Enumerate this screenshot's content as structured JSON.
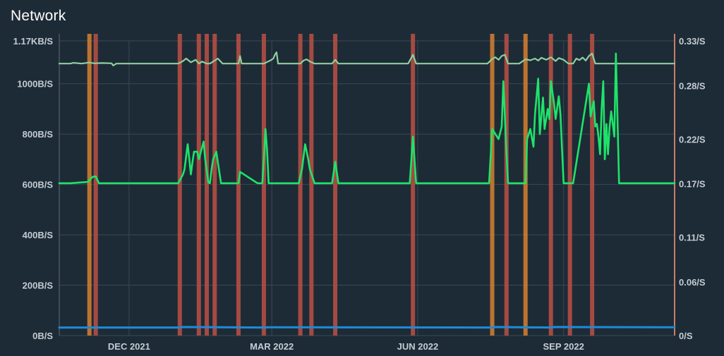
{
  "title": "Network",
  "chart_data": {
    "type": "line",
    "title": "Network",
    "y_left": {
      "ticks": [
        0,
        200,
        400,
        600,
        800,
        1000,
        1170
      ],
      "tick_labels": [
        "0B/S",
        "200B/S",
        "400B/S",
        "600B/S",
        "800B/S",
        "1000B/S",
        "1.17KB/S"
      ],
      "range": [
        0,
        1170
      ]
    },
    "y_right": {
      "ticks": [
        0,
        0.06,
        0.11,
        0.17,
        0.22,
        0.28,
        0.33
      ],
      "tick_labels": [
        "0/S",
        "0.06/S",
        "0.11/S",
        "0.17/S",
        "0.22/S",
        "0.28/S",
        "0.33/S"
      ],
      "range": [
        0,
        0.33
      ]
    },
    "x_axis": {
      "range": [
        "2021-10-18",
        "2022-11-10"
      ],
      "ticks": [
        "2021-12-01",
        "2022-03-01",
        "2022-06-01",
        "2022-09-01"
      ],
      "tick_labels": [
        "DEC 2021",
        "MAR 2022",
        "JUN 2022",
        "SEP 2022"
      ]
    },
    "colors": {
      "background": "#1d2b36",
      "grid": "#3a4855",
      "axis_left": "#4a5663",
      "axis_right": "#c97d6c",
      "band_red": "#b84e44",
      "band_orange": "#d37d30"
    },
    "bands": [
      {
        "date": "2021-11-06",
        "color": "orange"
      },
      {
        "date": "2021-11-10",
        "color": "red"
      },
      {
        "date": "2022-01-02",
        "color": "red"
      },
      {
        "date": "2022-01-14",
        "color": "red"
      },
      {
        "date": "2022-01-19",
        "color": "red"
      },
      {
        "date": "2022-01-24",
        "color": "red"
      },
      {
        "date": "2022-02-08",
        "color": "red"
      },
      {
        "date": "2022-02-24",
        "color": "red"
      },
      {
        "date": "2022-03-19",
        "color": "red"
      },
      {
        "date": "2022-03-26",
        "color": "red"
      },
      {
        "date": "2022-04-10",
        "color": "red"
      },
      {
        "date": "2022-05-29",
        "color": "red"
      },
      {
        "date": "2022-07-18",
        "color": "orange"
      },
      {
        "date": "2022-07-27",
        "color": "red"
      },
      {
        "date": "2022-08-08",
        "color": "orange"
      },
      {
        "date": "2022-08-24",
        "color": "red"
      },
      {
        "date": "2022-09-05",
        "color": "red"
      },
      {
        "date": "2022-09-19",
        "color": "red"
      }
    ],
    "series": [
      {
        "axis": "left",
        "color": "#8fcf9e",
        "width": 2.2,
        "x": [
          "2021-10-18",
          "2021-10-25",
          "2021-10-27",
          "2021-11-01",
          "2021-11-06",
          "2021-11-09",
          "2021-11-14",
          "2021-11-20",
          "2021-11-21",
          "2021-11-23",
          "2021-12-10",
          "2022-01-01",
          "2022-01-04",
          "2022-01-06",
          "2022-01-09",
          "2022-01-12",
          "2022-01-14",
          "2022-01-16",
          "2022-01-19",
          "2022-01-21",
          "2022-01-24",
          "2022-01-26",
          "2022-01-29",
          "2022-02-08",
          "2022-02-09",
          "2022-02-10",
          "2022-02-24",
          "2022-02-28",
          "2022-03-02",
          "2022-03-03",
          "2022-03-04",
          "2022-03-05",
          "2022-03-12",
          "2022-03-19",
          "2022-03-21",
          "2022-03-23",
          "2022-03-25",
          "2022-03-28",
          "2022-04-08",
          "2022-04-10",
          "2022-04-12",
          "2022-05-26",
          "2022-05-29",
          "2022-05-31",
          "2022-07-15",
          "2022-07-18",
          "2022-07-20",
          "2022-07-22",
          "2022-07-24",
          "2022-07-26",
          "2022-07-28",
          "2022-08-04",
          "2022-08-08",
          "2022-08-11",
          "2022-08-14",
          "2022-08-16",
          "2022-08-18",
          "2022-08-21",
          "2022-08-24",
          "2022-08-27",
          "2022-08-29",
          "2022-09-01",
          "2022-09-04",
          "2022-09-07",
          "2022-09-09",
          "2022-09-11",
          "2022-09-13",
          "2022-09-15",
          "2022-09-17",
          "2022-09-19",
          "2022-09-21",
          "2022-09-24",
          "2022-10-20",
          "2022-11-10"
        ],
        "y": [
          1080,
          1080,
          1083,
          1080,
          1084,
          1081,
          1082,
          1081,
          1072,
          1080,
          1080,
          1080,
          1090,
          1100,
          1085,
          1095,
          1080,
          1088,
          1080,
          1080,
          1092,
          1100,
          1080,
          1080,
          1110,
          1080,
          1080,
          1092,
          1100,
          1115,
          1125,
          1080,
          1080,
          1080,
          1092,
          1097,
          1088,
          1080,
          1080,
          1095,
          1080,
          1080,
          1115,
          1080,
          1080,
          1098,
          1105,
          1095,
          1110,
          1115,
          1080,
          1080,
          1097,
          1093,
          1100,
          1092,
          1103,
          1095,
          1105,
          1090,
          1102,
          1095,
          1080,
          1080,
          1100,
          1094,
          1104,
          1092,
          1110,
          1120,
          1080,
          1080,
          1080,
          1080
        ]
      },
      {
        "axis": "left",
        "color": "#1ee36a",
        "width": 2.6,
        "x": [
          "2021-10-18",
          "2021-10-25",
          "2021-11-05",
          "2021-11-08",
          "2021-11-10",
          "2021-11-12",
          "2021-12-20",
          "2022-01-01",
          "2022-01-04",
          "2022-01-05",
          "2022-01-07",
          "2022-01-08",
          "2022-01-09",
          "2022-01-10",
          "2022-01-11",
          "2022-01-13",
          "2022-01-14",
          "2022-01-17",
          "2022-01-18",
          "2022-01-20",
          "2022-01-21",
          "2022-01-22",
          "2022-01-23",
          "2022-01-25",
          "2022-01-28",
          "2022-02-08",
          "2022-02-09",
          "2022-02-20",
          "2022-02-23",
          "2022-02-24",
          "2022-02-25",
          "2022-02-26",
          "2022-02-27",
          "2022-03-18",
          "2022-03-20",
          "2022-03-22",
          "2022-03-24",
          "2022-03-25",
          "2022-03-28",
          "2022-04-08",
          "2022-04-10",
          "2022-04-12",
          "2022-05-27",
          "2022-05-29",
          "2022-05-31",
          "2022-07-16",
          "2022-07-18",
          "2022-07-20",
          "2022-07-22",
          "2022-07-24",
          "2022-07-25",
          "2022-07-27",
          "2022-07-28",
          "2022-08-08",
          "2022-08-09",
          "2022-08-11",
          "2022-08-13",
          "2022-08-14",
          "2022-08-16",
          "2022-08-17",
          "2022-08-19",
          "2022-08-20",
          "2022-08-22",
          "2022-08-23",
          "2022-08-24",
          "2022-08-26",
          "2022-08-27",
          "2022-08-29",
          "2022-08-30",
          "2022-09-01",
          "2022-09-03",
          "2022-09-04",
          "2022-09-06",
          "2022-09-07",
          "2022-09-17",
          "2022-09-18",
          "2022-09-20",
          "2022-09-21",
          "2022-09-22",
          "2022-09-23",
          "2022-09-24",
          "2022-09-25",
          "2022-09-26",
          "2022-09-27",
          "2022-09-28",
          "2022-09-29",
          "2022-09-30",
          "2022-10-01",
          "2022-10-03",
          "2022-10-04",
          "2022-10-06",
          "2022-11-10"
        ],
        "y": [
          605,
          605,
          610,
          630,
          632,
          605,
          605,
          605,
          640,
          660,
          760,
          700,
          640,
          690,
          730,
          730,
          700,
          770,
          700,
          608,
          605,
          660,
          700,
          730,
          605,
          605,
          650,
          605,
          605,
          700,
          820,
          740,
          605,
          605,
          660,
          760,
          700,
          660,
          605,
          605,
          690,
          605,
          605,
          790,
          605,
          605,
          820,
          800,
          780,
          830,
          1010,
          720,
          605,
          605,
          780,
          820,
          750,
          880,
          1020,
          800,
          945,
          820,
          900,
          860,
          1010,
          920,
          860,
          950,
          880,
          605,
          605,
          605,
          605,
          605,
          1000,
          870,
          930,
          830,
          840,
          790,
          720,
          900,
          1010,
          700,
          840,
          720,
          830,
          890,
          790,
          1120,
          605,
          605
        ]
      },
      {
        "axis": "left",
        "color": "#1e8bd8",
        "width": 3,
        "x": [
          "2021-10-18",
          "2022-01-02",
          "2022-01-04",
          "2022-02-24",
          "2022-02-27",
          "2022-07-18",
          "2022-07-20",
          "2022-08-24",
          "2022-08-26",
          "2022-11-10"
        ],
        "y": [
          32,
          32,
          34,
          32,
          33,
          32,
          34,
          32,
          34,
          33
        ]
      }
    ]
  }
}
